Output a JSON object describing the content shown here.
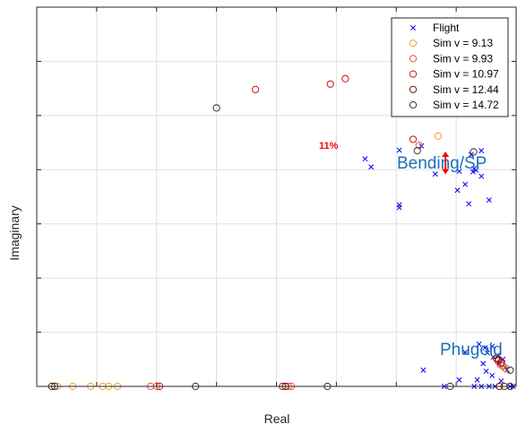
{
  "chart_data": {
    "type": "scatter",
    "xlabel": "Real",
    "ylabel": "Imaginary",
    "xlim": [
      -8,
      0
    ],
    "ylim": [
      0,
      7
    ],
    "grid": true,
    "legend_position": "top-right",
    "series": [
      {
        "name": "Flight",
        "marker": "x",
        "color": "#0000ff",
        "points": [
          [
            -1.58,
            4.44
          ],
          [
            -2.52,
            4.2
          ],
          [
            -2.42,
            4.05
          ],
          [
            -0.58,
            4.35
          ],
          [
            -0.75,
            4.28
          ],
          [
            -0.67,
            3.99
          ],
          [
            -0.72,
            3.96
          ],
          [
            -0.85,
            3.73
          ],
          [
            -0.95,
            3.97
          ],
          [
            -1.35,
            3.92
          ],
          [
            -0.98,
            3.62
          ],
          [
            -0.45,
            3.44
          ],
          [
            -0.79,
            3.37
          ],
          [
            -0.7,
            4.02
          ],
          [
            -0.58,
            3.88
          ],
          [
            -1.95,
            4.36
          ],
          [
            -1.95,
            3.3
          ],
          [
            -1.95,
            3.35
          ],
          [
            -0.4,
            0.74
          ],
          [
            -0.62,
            0.78
          ],
          [
            -0.52,
            0.71
          ],
          [
            -0.48,
            0.62
          ],
          [
            -0.3,
            0.56
          ],
          [
            -0.22,
            0.5
          ],
          [
            -0.28,
            0.42
          ],
          [
            -0.55,
            0.42
          ],
          [
            -0.18,
            0.35
          ],
          [
            -0.15,
            0.3
          ],
          [
            -0.38,
            0.54
          ],
          [
            -0.5,
            0.28
          ],
          [
            -0.4,
            0.2
          ],
          [
            -0.25,
            0.1
          ],
          [
            -0.58,
            0.0
          ],
          [
            -0.1,
            0.0
          ],
          [
            -0.05,
            0.0
          ],
          [
            -0.35,
            0.0
          ],
          [
            -1.55,
            0.3
          ],
          [
            -0.95,
            0.12
          ],
          [
            -0.85,
            0.63
          ],
          [
            -0.65,
            0.12
          ],
          [
            -0.45,
            0.0
          ],
          [
            -1.2,
            0.0
          ],
          [
            -0.7,
            0.0
          ]
        ]
      },
      {
        "name": "Sim v = 9.13",
        "marker": "o",
        "color": "#f5a623",
        "points": [
          [
            -1.3,
            4.62
          ],
          [
            -1.9,
            5.35
          ],
          [
            -7.65,
            0.0
          ],
          [
            -7.4,
            0.0
          ],
          [
            -7.1,
            0.0
          ],
          [
            -6.9,
            0.0
          ],
          [
            -6.65,
            0.0
          ],
          [
            -6.8,
            0.0
          ],
          [
            -0.18,
            0.33
          ],
          [
            -0.2,
            0.35
          ]
        ]
      },
      {
        "name": "Sim v = 9.93",
        "marker": "o",
        "color": "#e8573a",
        "points": [
          [
            -1.62,
            4.45
          ],
          [
            -1.95,
            5.72
          ],
          [
            -6.1,
            0.0
          ],
          [
            -6.0,
            0.0
          ],
          [
            -3.8,
            0.0
          ],
          [
            -3.75,
            0.0
          ],
          [
            -0.22,
            0.38
          ],
          [
            -0.26,
            0.4
          ]
        ]
      },
      {
        "name": "Sim v = 10.97",
        "marker": "o",
        "color": "#cc1111",
        "points": [
          [
            -2.85,
            5.68
          ],
          [
            -3.1,
            5.58
          ],
          [
            -4.35,
            5.48
          ],
          [
            -1.72,
            4.56
          ],
          [
            -5.95,
            0.0
          ],
          [
            -3.9,
            0.0
          ],
          [
            -0.25,
            0.43
          ],
          [
            -0.3,
            0.47
          ]
        ]
      },
      {
        "name": "Sim v = 12.44",
        "marker": "o",
        "color": "#6b1a0c",
        "points": [
          [
            -7.75,
            0.0
          ],
          [
            -3.85,
            0.0
          ],
          [
            -0.3,
            0.5
          ],
          [
            -0.33,
            0.52
          ],
          [
            -0.2,
            0.0
          ],
          [
            -0.28,
            0.0
          ]
        ]
      },
      {
        "name": "Sim v = 14.72",
        "marker": "o",
        "color": "#333333",
        "points": [
          [
            -5.0,
            5.14
          ],
          [
            -1.65,
            4.35
          ],
          [
            -0.71,
            4.33
          ],
          [
            -7.7,
            0.0
          ],
          [
            -5.35,
            0.0
          ],
          [
            -3.15,
            0.0
          ],
          [
            -1.1,
            0.0
          ],
          [
            -0.1,
            0.0
          ],
          [
            -0.1,
            0.3
          ]
        ]
      }
    ],
    "annotations": [
      {
        "text": "Bending/SP",
        "color": "#1a6fba",
        "x": -0.83,
        "y": 4.1
      },
      {
        "text": "Phugoid",
        "color": "#1a6fba",
        "x": -0.28,
        "y": 0.7
      },
      {
        "text": "11%",
        "color": "#ff0000",
        "x": -1.05,
        "y": 4.25
      }
    ],
    "arrow": {
      "x": -1.18,
      "y_from": 3.93,
      "y_to": 4.32,
      "color": "#ff0000"
    }
  }
}
